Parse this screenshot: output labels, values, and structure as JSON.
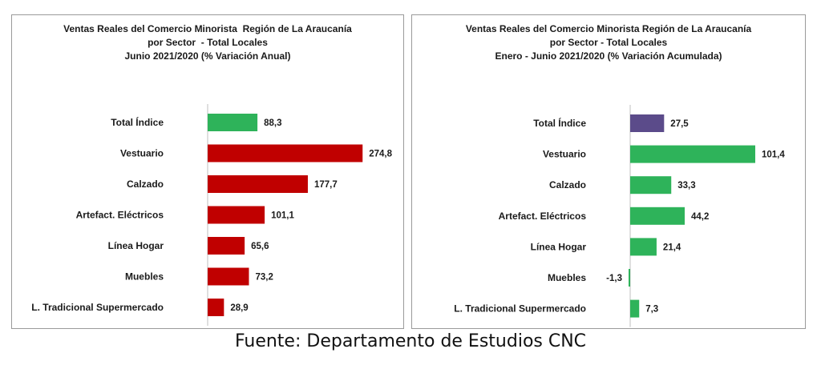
{
  "chart_data": [
    {
      "type": "bar",
      "orientation": "horizontal",
      "title_lines": [
        "Ventas Reales del Comercio Minorista  Región de La Araucanía",
        "por Sector  - Total Locales",
        "Junio 2021/2020 (% Variación Anual)"
      ],
      "categories": [
        "Total Índice",
        "Vestuario",
        "Calzado",
        "Artefact. Eléctricos",
        "Línea Hogar",
        "Muebles",
        "L. Tradicional Supermercado"
      ],
      "values": [
        88.3,
        274.8,
        177.7,
        101.1,
        65.6,
        73.2,
        28.9
      ],
      "value_labels": [
        "88,3",
        "274,8",
        "177,7",
        "101,1",
        "65,6",
        "73,2",
        "28,9"
      ],
      "colors": [
        "#2eb35a",
        "#c00000",
        "#c00000",
        "#c00000",
        "#c00000",
        "#c00000",
        "#c00000"
      ],
      "xlim": [
        0,
        310
      ],
      "xlabel": "",
      "ylabel": "",
      "grid": false,
      "legend": "none"
    },
    {
      "type": "bar",
      "orientation": "horizontal",
      "title_lines": [
        "Ventas Reales del Comercio Minorista Región de La Araucanía",
        "por Sector - Total Locales",
        "Enero - Junio 2021/2020 (% Variación Acumulada)"
      ],
      "categories": [
        "Total Índice",
        "Vestuario",
        "Calzado",
        "Artefact. Eléctricos",
        "Línea Hogar",
        "Muebles",
        "L. Tradicional Supermercado"
      ],
      "values": [
        27.5,
        101.4,
        33.3,
        44.2,
        21.4,
        -1.3,
        7.3
      ],
      "value_labels": [
        "27,5",
        "101,4",
        "33,3",
        "44,2",
        "21,4",
        "-1,3",
        "7,3"
      ],
      "colors": [
        "#5b4b8a",
        "#2eb35a",
        "#2eb35a",
        "#2eb35a",
        "#2eb35a",
        "#2eb35a",
        "#2eb35a"
      ],
      "xlim": [
        0,
        130
      ],
      "xlabel": "",
      "ylabel": "",
      "grid": false,
      "legend": "none"
    }
  ],
  "footer": {
    "source": "Fuente: Departamento de Estudios CNC"
  }
}
